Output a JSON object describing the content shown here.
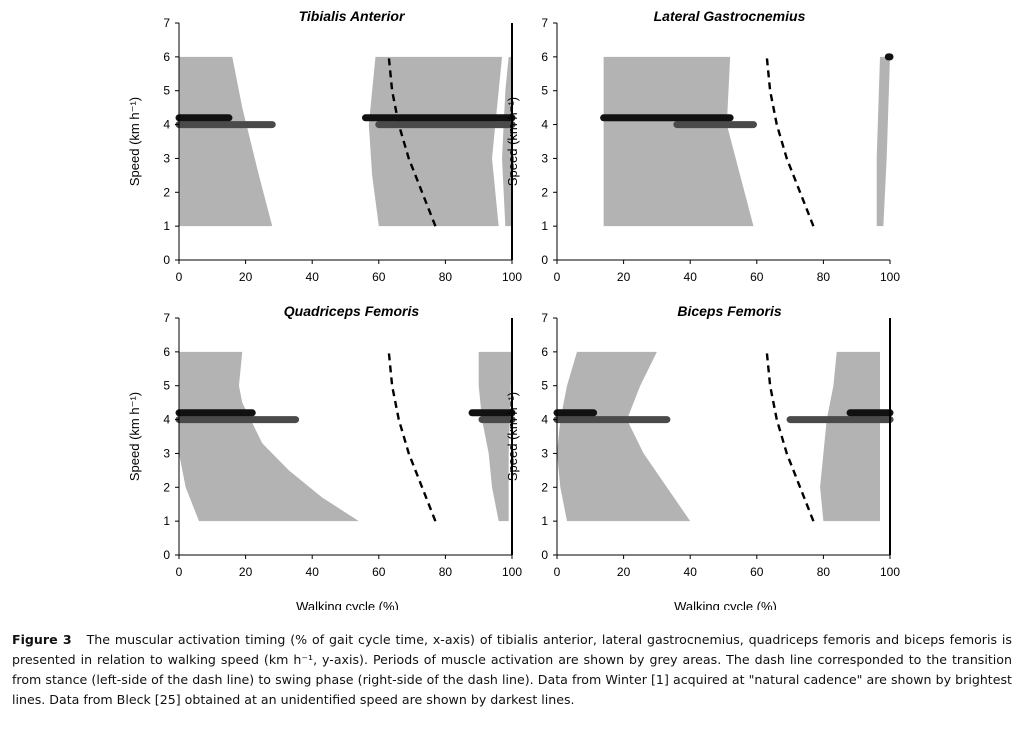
{
  "chart_data": [
    {
      "type": "area",
      "title": "Tibialis Anterior",
      "xlabel": "",
      "ylabel": "Speed (km h⁻¹)",
      "xlim": [
        0,
        100
      ],
      "ylim": [
        0,
        7
      ],
      "xticks": [
        "0",
        "20",
        "40",
        "60",
        "80",
        "100"
      ],
      "yticks": [
        "0",
        "1",
        "2",
        "3",
        "4",
        "5",
        "6",
        "7"
      ],
      "activation_areas": [
        {
          "left": [
            [
              0,
              1
            ],
            [
              0,
              6
            ]
          ],
          "right": [
            [
              28,
              1
            ],
            [
              24,
              2.5
            ],
            [
              19,
              4.5
            ],
            [
              16,
              6
            ]
          ]
        },
        {
          "left": [
            [
              60,
              1
            ],
            [
              58,
              2.5
            ],
            [
              57,
              4
            ],
            [
              59,
              6
            ]
          ],
          "right": [
            [
              96,
              1
            ],
            [
              94,
              3
            ],
            [
              96,
              5
            ],
            [
              97,
              6
            ]
          ]
        },
        {
          "left": [
            [
              98,
              1
            ],
            [
              97,
              3
            ],
            [
              98,
              5
            ],
            [
              99,
              6
            ]
          ],
          "right": [
            [
              100,
              1
            ],
            [
              100,
              6
            ]
          ]
        }
      ],
      "stance_swing_transition": [
        [
          77,
          1
        ],
        [
          73,
          2
        ],
        [
          69,
          3
        ],
        [
          66,
          4
        ],
        [
          64,
          5
        ],
        [
          63,
          6
        ]
      ],
      "winter_bars": [
        {
          "speed": 4.2,
          "start": 0,
          "end": 15
        },
        {
          "speed": 4.2,
          "start": 56,
          "end": 100
        }
      ],
      "bleck_bars": [
        {
          "speed": 4.0,
          "start": 0,
          "end": 28
        },
        {
          "speed": 4.0,
          "start": 60,
          "end": 100
        }
      ],
      "right_axis_line": true
    },
    {
      "type": "area",
      "title": "Lateral Gastrocnemius",
      "xlabel": "",
      "ylabel": "Speed (km h⁻¹)",
      "xlim": [
        0,
        100
      ],
      "ylim": [
        0,
        7
      ],
      "xticks": [
        "0",
        "20",
        "40",
        "60",
        "80",
        "100"
      ],
      "yticks": [
        "0",
        "1",
        "2",
        "3",
        "4",
        "5",
        "6",
        "7"
      ],
      "activation_areas": [
        {
          "left": [
            [
              14,
              1
            ],
            [
              14,
              6
            ]
          ],
          "right": [
            [
              59,
              1
            ],
            [
              55,
              2.5
            ],
            [
              51,
              4
            ],
            [
              52,
              6
            ]
          ]
        },
        {
          "left": [
            [
              96,
              1
            ],
            [
              96,
              3
            ],
            [
              97,
              6
            ]
          ],
          "right": [
            [
              98,
              1
            ],
            [
              99,
              3
            ],
            [
              100,
              6
            ]
          ]
        }
      ],
      "stance_swing_transition": [
        [
          77,
          1
        ],
        [
          73,
          2
        ],
        [
          69,
          3
        ],
        [
          66,
          4
        ],
        [
          64,
          5
        ],
        [
          63,
          6
        ]
      ],
      "winter_bars": [
        {
          "speed": 4.2,
          "start": 14,
          "end": 52
        },
        {
          "speed": 6.0,
          "start": 99.5,
          "end": 100
        }
      ],
      "bleck_bars": [
        {
          "speed": 4.0,
          "start": 36,
          "end": 59
        }
      ],
      "right_axis_line": false
    },
    {
      "type": "area",
      "title": "Quadriceps Femoris",
      "xlabel": "Walking cycle (%)",
      "ylabel": "Speed (km h⁻¹)",
      "xlim": [
        0,
        100
      ],
      "ylim": [
        0,
        7
      ],
      "xticks": [
        "0",
        "20",
        "40",
        "60",
        "80",
        "100"
      ],
      "yticks": [
        "0",
        "1",
        "2",
        "3",
        "4",
        "5",
        "6",
        "7"
      ],
      "activation_areas": [
        {
          "left": [
            [
              6,
              1
            ],
            [
              2,
              2
            ],
            [
              0,
              3
            ],
            [
              0,
              6
            ]
          ],
          "right": [
            [
              54,
              1
            ],
            [
              43,
              1.7
            ],
            [
              33,
              2.5
            ],
            [
              25,
              3.3
            ],
            [
              19,
              4.5
            ],
            [
              18,
              5
            ],
            [
              19,
              6
            ]
          ]
        },
        {
          "left": [
            [
              96,
              1
            ],
            [
              94,
              2
            ],
            [
              93,
              3
            ],
            [
              91,
              4
            ],
            [
              90,
              5
            ],
            [
              90,
              6
            ]
          ],
          "right": [
            [
              99,
              1
            ],
            [
              99,
              3
            ],
            [
              100,
              6
            ]
          ]
        }
      ],
      "stance_swing_transition": [
        [
          77,
          1
        ],
        [
          73,
          2
        ],
        [
          69,
          3
        ],
        [
          66,
          4
        ],
        [
          64,
          5
        ],
        [
          63,
          6
        ]
      ],
      "winter_bars": [
        {
          "speed": 4.2,
          "start": 0,
          "end": 22
        },
        {
          "speed": 4.2,
          "start": 88,
          "end": 100
        }
      ],
      "bleck_bars": [
        {
          "speed": 4.0,
          "start": 0,
          "end": 35
        },
        {
          "speed": 4.0,
          "start": 91,
          "end": 100
        }
      ],
      "right_axis_line": true
    },
    {
      "type": "area",
      "title": "Biceps Femoris",
      "xlabel": "Walking cycle (%)",
      "ylabel": "Speed (km h⁻¹)",
      "xlim": [
        0,
        100
      ],
      "ylim": [
        0,
        7
      ],
      "xticks": [
        "0",
        "20",
        "40",
        "60",
        "80",
        "100"
      ],
      "yticks": [
        "0",
        "1",
        "2",
        "3",
        "4",
        "5",
        "6",
        "7"
      ],
      "activation_areas": [
        {
          "left": [
            [
              3,
              1
            ],
            [
              1,
              2
            ],
            [
              0,
              3
            ],
            [
              1,
              4
            ],
            [
              3,
              5
            ],
            [
              6,
              6
            ]
          ],
          "right": [
            [
              40,
              1
            ],
            [
              33,
              2
            ],
            [
              26,
              3
            ],
            [
              21,
              4
            ],
            [
              25,
              5
            ],
            [
              30,
              6
            ]
          ]
        },
        {
          "left": [
            [
              80,
              1
            ],
            [
              79,
              2
            ],
            [
              80,
              3
            ],
            [
              81,
              4
            ],
            [
              83,
              5
            ],
            [
              84,
              6
            ]
          ],
          "right": [
            [
              97,
              1
            ],
            [
              97,
              6
            ]
          ]
        }
      ],
      "stance_swing_transition": [
        [
          77,
          1
        ],
        [
          73,
          2
        ],
        [
          69,
          3
        ],
        [
          66,
          4
        ],
        [
          64,
          5
        ],
        [
          63,
          6
        ]
      ],
      "winter_bars": [
        {
          "speed": 4.2,
          "start": 0,
          "end": 11
        },
        {
          "speed": 4.2,
          "start": 88,
          "end": 100
        }
      ],
      "bleck_bars": [
        {
          "speed": 4.0,
          "start": 0,
          "end": 33
        },
        {
          "speed": 4.0,
          "start": 70,
          "end": 100
        }
      ],
      "right_axis_line": true
    }
  ],
  "caption": {
    "label": "Figure 3",
    "text": "The muscular activation timing (% of gait cycle time, x-axis) of tibialis anterior, lateral gastrocnemius, quadriceps femoris and biceps femoris is presented in relation to walking speed (km h⁻¹, y-axis). Periods of muscle activation are shown by grey areas. The dash line corresponded to the transition from stance (left-side of the dash line) to swing phase (right-side of the dash line). Data from Winter [1] acquired at \"natural cadence\" are shown by brightest lines. Data from Bleck [25] obtained at an unidentified speed are shown by darkest lines."
  },
  "colors": {
    "activation_area": "#b3b3b3",
    "winter_bar": "#111111",
    "bleck_bar": "#4a4a4a",
    "transition_line": "#000000"
  }
}
